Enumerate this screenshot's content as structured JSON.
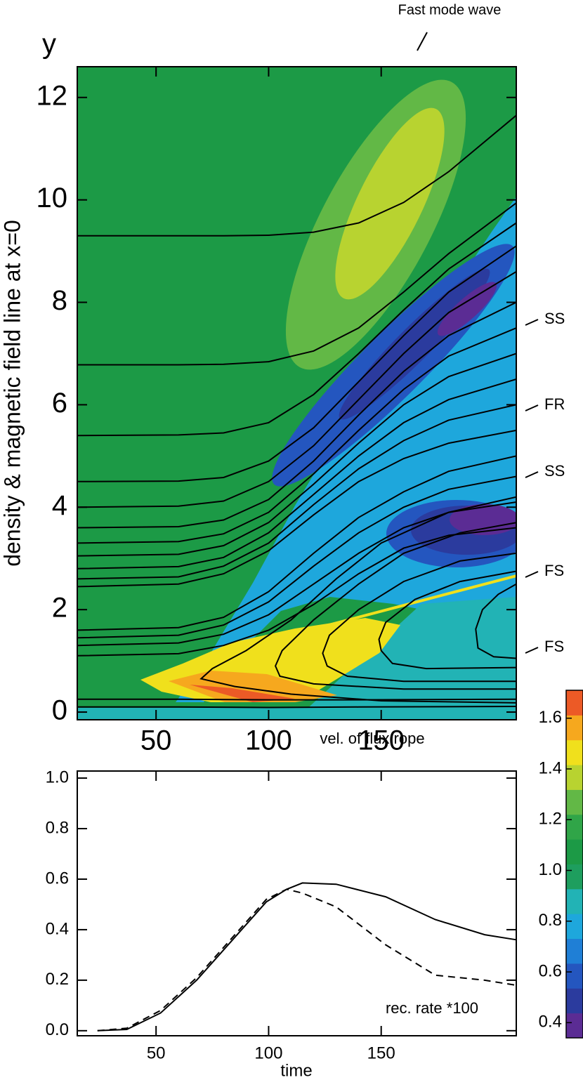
{
  "chart_data": [
    {
      "type": "contour",
      "ylabel_symbol": "y",
      "ylabel": "density & magnetic field line at x=0",
      "xlim": [
        15,
        210
      ],
      "xticks": [
        50,
        100,
        150
      ],
      "ylim": [
        -0.15,
        12.6
      ],
      "yticks": [
        0,
        2,
        4,
        6,
        8,
        10,
        12
      ],
      "line_color": "#000000",
      "annotations": [
        "Fast mode wave",
        "SS",
        "FR",
        "SS",
        "FS",
        "FS"
      ],
      "field_lines": [
        {
          "x": [
            15,
            60,
            80,
            100,
            120,
            140,
            160,
            180,
            210
          ],
          "values": [
            9.3,
            9.3,
            9.3,
            9.31,
            9.37,
            9.55,
            9.95,
            10.55,
            11.65
          ]
        },
        {
          "x": [
            15,
            60,
            80,
            100,
            120,
            140,
            160,
            180,
            210
          ],
          "values": [
            6.78,
            6.78,
            6.79,
            6.84,
            7.05,
            7.5,
            8.2,
            8.95,
            9.94
          ]
        },
        {
          "x": [
            15,
            60,
            80,
            100,
            120,
            140,
            160,
            180,
            210
          ],
          "values": [
            5.4,
            5.41,
            5.45,
            5.65,
            6.2,
            7.0,
            7.85,
            8.65,
            9.55
          ]
        },
        {
          "x": [
            15,
            60,
            80,
            100,
            120,
            140,
            160,
            180,
            210
          ],
          "values": [
            4.5,
            4.51,
            4.58,
            4.9,
            5.55,
            6.45,
            7.35,
            8.2,
            9.1
          ]
        },
        {
          "x": [
            15,
            60,
            80,
            100,
            120,
            140,
            160,
            180,
            210
          ],
          "values": [
            4.0,
            4.02,
            4.12,
            4.5,
            5.2,
            6.1,
            7.0,
            7.8,
            8.6
          ]
        },
        {
          "x": [
            15,
            60,
            80,
            100,
            120,
            140,
            160,
            180,
            210
          ],
          "values": [
            3.6,
            3.62,
            3.75,
            4.15,
            4.9,
            5.8,
            6.65,
            7.35,
            8.0
          ]
        },
        {
          "x": [
            15,
            60,
            80,
            100,
            120,
            140,
            160,
            180,
            210
          ],
          "values": [
            3.3,
            3.33,
            3.48,
            3.9,
            4.65,
            5.5,
            6.3,
            6.95,
            7.5
          ]
        },
        {
          "x": [
            15,
            60,
            80,
            100,
            120,
            140,
            160,
            180,
            210
          ],
          "values": [
            3.05,
            3.08,
            3.25,
            3.7,
            4.45,
            5.25,
            6.0,
            6.55,
            7.0
          ]
        },
        {
          "x": [
            15,
            60,
            80,
            100,
            120,
            140,
            160,
            180,
            210
          ],
          "values": [
            2.8,
            2.84,
            3.02,
            3.5,
            4.25,
            5.0,
            5.65,
            6.1,
            6.5
          ]
        },
        {
          "x": [
            15,
            60,
            80,
            100,
            120,
            140,
            160,
            180,
            210
          ],
          "values": [
            2.6,
            2.64,
            2.85,
            3.3,
            4.05,
            4.75,
            5.3,
            5.7,
            6.0
          ]
        },
        {
          "x": [
            15,
            60,
            80,
            100,
            120,
            140,
            160,
            180,
            210
          ],
          "values": [
            2.45,
            2.5,
            2.7,
            3.15,
            3.85,
            4.5,
            4.95,
            5.25,
            5.5
          ]
        },
        {
          "x": [
            15,
            60,
            80,
            100,
            120,
            140,
            160,
            180,
            210
          ],
          "values": [
            1.6,
            1.65,
            1.85,
            2.35,
            3.1,
            3.8,
            4.3,
            4.7,
            5.0
          ]
        },
        {
          "x": [
            15,
            60,
            80,
            100,
            120,
            140,
            160,
            180,
            210
          ],
          "values": [
            1.45,
            1.5,
            1.7,
            2.15,
            2.85,
            3.5,
            4.0,
            4.35,
            4.6
          ]
        },
        {
          "x": [
            15,
            60,
            80,
            100,
            120,
            140,
            160,
            180,
            210
          ],
          "values": [
            1.3,
            1.35,
            1.52,
            1.9,
            2.5,
            3.1,
            3.6,
            3.9,
            4.1
          ]
        },
        {
          "x": [
            15,
            60,
            80,
            100,
            120,
            140,
            160,
            180,
            210
          ],
          "values": [
            1.1,
            1.14,
            1.3,
            1.6,
            2.1,
            2.7,
            3.2,
            3.45,
            3.6
          ]
        },
        {
          "x": [
            15,
            60,
            100,
            140,
            210
          ],
          "values": [
            0.25,
            0.25,
            0.24,
            0.24,
            0.25
          ]
        },
        {
          "x": [
            15,
            60,
            100,
            140,
            210
          ],
          "values": [
            0.1,
            0.1,
            0.09,
            0.1,
            0.11
          ]
        },
        {
          "x": [
            210,
            150,
            110,
            85,
            70,
            75,
            90,
            110,
            130,
            150,
            180,
            210
          ],
          "values": [
            0.18,
            0.22,
            0.35,
            0.5,
            0.65,
            0.85,
            1.2,
            1.8,
            2.6,
            3.3,
            3.9,
            4.2
          ]
        },
        {
          "x": [
            210,
            160,
            120,
            105,
            103,
            106,
            120,
            140,
            160,
            185,
            210
          ],
          "values": [
            0.45,
            0.45,
            0.55,
            0.7,
            0.9,
            1.2,
            1.8,
            2.5,
            3.1,
            3.5,
            3.7
          ]
        },
        {
          "x": [
            210,
            160,
            135,
            126,
            124,
            127,
            140,
            160,
            185,
            210
          ],
          "values": [
            0.6,
            0.6,
            0.7,
            0.9,
            1.15,
            1.5,
            2.0,
            2.55,
            2.95,
            3.1
          ]
        },
        {
          "x": [
            210,
            170,
            155,
            150,
            149,
            152,
            165,
            185,
            210
          ],
          "values": [
            0.87,
            0.85,
            0.95,
            1.2,
            1.42,
            1.75,
            2.2,
            2.55,
            2.75
          ]
        },
        {
          "x": [
            210,
            200,
            193,
            192,
            195,
            202,
            210
          ],
          "values": [
            1.05,
            1.08,
            1.25,
            1.62,
            2.0,
            2.3,
            2.5
          ]
        }
      ],
      "colorbar": {
        "lim": [
          0.34,
          1.71
        ],
        "ticks": [
          0.4,
          0.6,
          0.8,
          {
            "value": 1,
            "label": "1.0"
          },
          1.2,
          1.4,
          1.6
        ],
        "colors": [
          "#5b2c94",
          "#2b3b9e",
          "#2456bf",
          "#1f7fd6",
          "#1ea7dc",
          "#22b3b5",
          "#1e9e5e",
          "#1c9a46",
          "#30a548",
          "#62b846",
          "#b8d330",
          "#f0e01c",
          "#f6a81e",
          "#ec5a26"
        ]
      }
    },
    {
      "type": "line",
      "xlabel": "time",
      "xlim": [
        15,
        210
      ],
      "xticks": [
        50,
        100,
        150
      ],
      "ylim": [
        -0.02,
        1.028
      ],
      "yticks": [
        {
          "value": 0,
          "label": "0.0"
        },
        {
          "value": 0.2,
          "label": "0.2"
        },
        {
          "value": 0.4,
          "label": "0.4"
        },
        {
          "value": 0.6,
          "label": "0.6"
        },
        {
          "value": 0.8,
          "label": "0.8"
        },
        {
          "value": 1,
          "label": "1.0"
        }
      ],
      "x": [
        24,
        37,
        52,
        68,
        84,
        99,
        108,
        115,
        130,
        152,
        174,
        196,
        210
      ],
      "series": [
        {
          "name": "vel. of flux rope",
          "color": "#000000",
          "dash": "solid",
          "values": [
            0,
            0.005,
            0.07,
            0.2,
            0.36,
            0.51,
            0.56,
            0.585,
            0.58,
            0.53,
            0.44,
            0.38,
            0.36
          ]
        },
        {
          "name": "rec. rate *100",
          "color": "#000000",
          "dash": "dashed",
          "values": [
            0,
            0.01,
            0.08,
            0.21,
            0.37,
            0.52,
            0.56,
            0.545,
            0.49,
            0.34,
            0.22,
            0.2,
            0.18
          ]
        }
      ]
    }
  ]
}
